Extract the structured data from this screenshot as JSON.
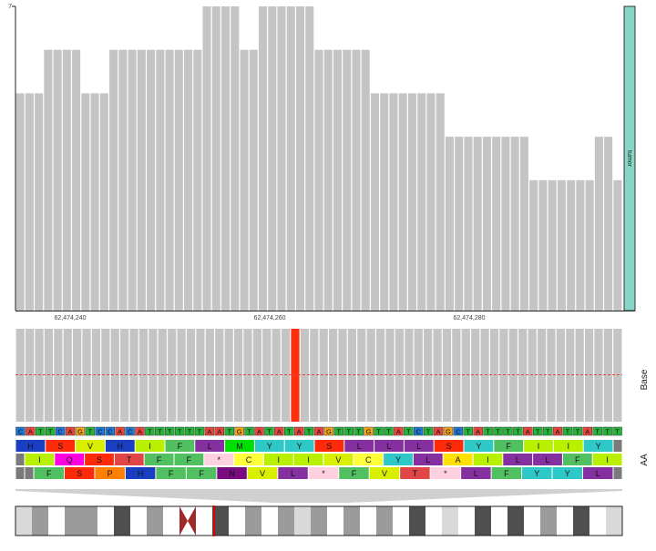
{
  "coverage": {
    "y_max_label": "7",
    "sample_label": "tumor",
    "depths": [
      5,
      5,
      5,
      6,
      6,
      6,
      6,
      5,
      5,
      5,
      6,
      6,
      6,
      6,
      6,
      6,
      6,
      6,
      6,
      6,
      7,
      7,
      7,
      7,
      6,
      6,
      7,
      7,
      7,
      7,
      7,
      7,
      6,
      6,
      6,
      6,
      6,
      6,
      5,
      5,
      5,
      5,
      5,
      5,
      5,
      5,
      4,
      4,
      4,
      4,
      4,
      4,
      4,
      4,
      4,
      3,
      3,
      3,
      3,
      3,
      3,
      3,
      4,
      4,
      3
    ],
    "positions": [
      "62,474,240",
      "62,474,260",
      "62,474,280"
    ]
  },
  "base_panel": {
    "label": "Base",
    "highlight_index": 29
  },
  "sequence": {
    "bases": [
      "C",
      "A",
      "T",
      "T",
      "C",
      "A",
      "G",
      "T",
      "C",
      "C",
      "A",
      "C",
      "A",
      "T",
      "T",
      "T",
      "T",
      "T",
      "T",
      "A",
      "A",
      "T",
      "G",
      "T",
      "A",
      "T",
      "A",
      "T",
      "A",
      "T",
      "A",
      "G",
      "T",
      "T",
      "T",
      "G",
      "T",
      "T",
      "A",
      "T",
      "C",
      "T",
      "A",
      "G",
      "C",
      "T",
      "A",
      "T",
      "T",
      "T",
      "T",
      "A",
      "T",
      "T",
      "A",
      "T",
      "T",
      "A",
      "T",
      "T",
      "T"
    ],
    "base_colors": {
      "A": "#e8463c",
      "C": "#1f77d4",
      "G": "#f4a418",
      "T": "#28b43a"
    }
  },
  "amino_acids": {
    "label": "AA",
    "frames": [
      [
        "H",
        "S",
        "V",
        "H",
        "I",
        "F",
        "L",
        "M",
        "Y",
        "Y",
        "S",
        "L",
        "L",
        "L",
        "S",
        "Y",
        "F",
        "I",
        "I",
        "Y",
        ""
      ],
      [
        "",
        "I",
        "Q",
        "S",
        "T",
        "F",
        "F",
        "*",
        "C",
        "I",
        "I",
        "V",
        "C",
        "Y",
        "L",
        "A",
        "I",
        "L",
        "L",
        "F",
        "I"
      ],
      [
        "",
        "",
        "F",
        "S",
        "P",
        "H",
        "F",
        "F",
        "N",
        "V",
        "L",
        "*",
        "F",
        "V",
        "T",
        "*",
        "L",
        "F",
        "Y",
        "Y",
        "L",
        ""
      ]
    ],
    "aa_colors": {
      "H": "#1a3ec2",
      "S": "#ff2a0a",
      "V": "#d8f000",
      "I": "#b8f000",
      "F": "#50c060",
      "L": "#862fa0",
      "M": "#00e000",
      "Y": "#2ec8c8",
      "Q": "#ff00e0",
      "T": "#e04646",
      "*": "#ffd0e0",
      "C": "#ffff3a",
      "A": "#ffe000",
      "N": "#7a0a80",
      "P": "#ff8000",
      "": "#7a7a7a"
    }
  },
  "ideogram": {
    "bands": [
      {
        "kind": "light"
      },
      {
        "kind": "gray"
      },
      {
        "kind": "white"
      },
      {
        "kind": "gray"
      },
      {
        "kind": "gray"
      },
      {
        "kind": "white"
      },
      {
        "kind": "dark"
      },
      {
        "kind": "white"
      },
      {
        "kind": "gray"
      },
      {
        "kind": "white"
      },
      {
        "kind": "centromere"
      },
      {
        "kind": "white"
      },
      {
        "kind": "dark"
      },
      {
        "kind": "white"
      },
      {
        "kind": "gray"
      },
      {
        "kind": "white"
      },
      {
        "kind": "gray"
      },
      {
        "kind": "light"
      },
      {
        "kind": "gray"
      },
      {
        "kind": "white"
      },
      {
        "kind": "gray"
      },
      {
        "kind": "white"
      },
      {
        "kind": "gray"
      },
      {
        "kind": "white"
      },
      {
        "kind": "dark"
      },
      {
        "kind": "white"
      },
      {
        "kind": "light"
      },
      {
        "kind": "white"
      },
      {
        "kind": "dark"
      },
      {
        "kind": "white"
      },
      {
        "kind": "dark"
      },
      {
        "kind": "white"
      },
      {
        "kind": "gray"
      },
      {
        "kind": "white"
      },
      {
        "kind": "dark"
      },
      {
        "kind": "white"
      },
      {
        "kind": "light"
      }
    ],
    "band_colors": {
      "white": "#ffffff",
      "light": "#d9d9d9",
      "gray": "#9b9b9b",
      "dark": "#4f4f4f",
      "centromere": "#9e2a2a"
    }
  }
}
